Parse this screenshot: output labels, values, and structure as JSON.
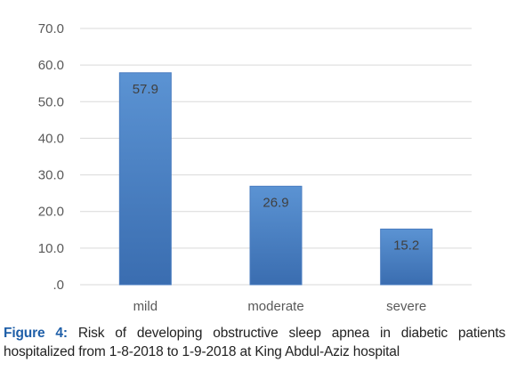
{
  "chart_data": {
    "type": "bar",
    "categories": [
      "mild",
      "moderate",
      "severe"
    ],
    "values": [
      57.9,
      26.9,
      15.2
    ],
    "value_labels": [
      "57.9",
      "26.9",
      "15.2"
    ],
    "y_ticks": [
      ".0",
      "10.0",
      "20.0",
      "30.0",
      "40.0",
      "50.0",
      "60.0",
      "70.0"
    ],
    "ylim": [
      0,
      70
    ],
    "grid": true,
    "legend": "none",
    "title": "",
    "xlabel": "",
    "ylabel": "",
    "colors": {
      "bar_top": "#5b93d3",
      "bar_bottom": "#3a6db0",
      "bar_edge": "#4a7cc0",
      "grid": "#d9d9d9",
      "axis_text": "#595959",
      "data_label": "#404040"
    }
  },
  "caption": {
    "label": "Figure 4:",
    "text": "Risk of developing obstructive sleep apnea in diabetic patients hospitalized from 1-8-2018 to 1-9-2018 at King Abdul-Aziz hospital"
  }
}
